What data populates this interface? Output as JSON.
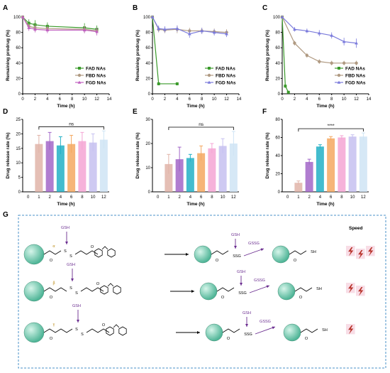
{
  "panels": {
    "A": "A",
    "B": "B",
    "C": "C",
    "D": "D",
    "E": "E",
    "F": "F",
    "G": "G"
  },
  "colors": {
    "FAD": "#3a9a2a",
    "FBD": "#b09a82",
    "FGD": "#7b7bdc",
    "nas_axis_color": "#000000"
  },
  "chart_data": [
    {
      "type": "line",
      "panel": "A",
      "xlabel": "Time (h)",
      "ylabel": "Remaining prodrug (%)",
      "xlim": [
        0,
        14
      ],
      "ylim": [
        0,
        100
      ],
      "xticks": [
        0,
        2,
        4,
        6,
        8,
        10,
        12,
        14
      ],
      "yticks": [
        0,
        20,
        40,
        60,
        80,
        100
      ],
      "legend_position": "bottom-right",
      "series": [
        {
          "name": "FAD NAs",
          "color": "#3a9a2a",
          "x": [
            0,
            1,
            2,
            4,
            10,
            12
          ],
          "y": [
            100,
            92,
            90,
            88,
            86,
            84
          ],
          "err": [
            2,
            5,
            6,
            5,
            6,
            5
          ]
        },
        {
          "name": "FBD NAs",
          "color": "#b09a82",
          "x": [
            0,
            1,
            2,
            4,
            10,
            12
          ],
          "y": [
            100,
            88,
            86,
            85,
            84,
            82
          ],
          "err": [
            2,
            4,
            5,
            4,
            5,
            4
          ]
        },
        {
          "name": "FGD NAs",
          "color": "#c060c0",
          "x": [
            0,
            1,
            2,
            4,
            10,
            12
          ],
          "y": [
            100,
            86,
            84,
            83,
            83,
            81
          ],
          "err": [
            2,
            4,
            4,
            4,
            4,
            5
          ]
        }
      ]
    },
    {
      "type": "line",
      "panel": "B",
      "xlabel": "Time (h)",
      "ylabel": "Remaining prodrug (%)",
      "xlim": [
        0,
        14
      ],
      "ylim": [
        0,
        100
      ],
      "xticks": [
        0,
        2,
        4,
        6,
        8,
        10,
        12,
        14
      ],
      "yticks": [
        0,
        20,
        40,
        60,
        80,
        100
      ],
      "legend_position": "bottom-right",
      "series": [
        {
          "name": "FAD NAs",
          "color": "#3a9a2a",
          "x": [
            0,
            1,
            4
          ],
          "y": [
            100,
            13,
            13
          ],
          "err": [
            2,
            2,
            2
          ]
        },
        {
          "name": "FBD NAs",
          "color": "#b09a82",
          "x": [
            0,
            1,
            2,
            4,
            6,
            8,
            10,
            12
          ],
          "y": [
            100,
            84,
            83,
            84,
            82,
            82,
            81,
            80
          ],
          "err": [
            2,
            4,
            4,
            5,
            4,
            4,
            4,
            4
          ]
        },
        {
          "name": "FGD NAs",
          "color": "#7b7bdc",
          "x": [
            0,
            1,
            2,
            4,
            6,
            8,
            10,
            12
          ],
          "y": [
            100,
            85,
            84,
            85,
            78,
            82,
            80,
            78
          ],
          "err": [
            2,
            4,
            4,
            4,
            5,
            4,
            4,
            4
          ]
        }
      ]
    },
    {
      "type": "line",
      "panel": "C",
      "xlabel": "Time (h)",
      "ylabel": "Remaining prodrug (%)",
      "xlim": [
        0,
        14
      ],
      "ylim": [
        0,
        100
      ],
      "xticks": [
        0,
        2,
        4,
        6,
        8,
        10,
        12,
        14
      ],
      "yticks": [
        0,
        20,
        40,
        60,
        80,
        100
      ],
      "legend_position": "bottom-right",
      "series": [
        {
          "name": "FAD NAs",
          "color": "#3a9a2a",
          "x": [
            0,
            0.5,
            1
          ],
          "y": [
            100,
            10,
            2
          ],
          "err": [
            2,
            2,
            2
          ]
        },
        {
          "name": "FBD NAs",
          "color": "#b09a82",
          "x": [
            0,
            2,
            4,
            6,
            8,
            10,
            12
          ],
          "y": [
            100,
            66,
            50,
            42,
            40,
            40,
            40
          ],
          "err": [
            2,
            3,
            3,
            3,
            3,
            3,
            3
          ]
        },
        {
          "name": "FGD NAs",
          "color": "#7b7bdc",
          "x": [
            0,
            2,
            4,
            6,
            8,
            10,
            12
          ],
          "y": [
            100,
            84,
            82,
            79,
            76,
            68,
            66
          ],
          "err": [
            2,
            3,
            3,
            4,
            4,
            5,
            6
          ]
        }
      ]
    },
    {
      "type": "bar",
      "panel": "D",
      "xlabel": "Time (h)",
      "ylabel": "Drug release rate (%)",
      "categories": [
        "0",
        "1",
        "2",
        "4",
        "6",
        "8",
        "10",
        "12"
      ],
      "ylim": [
        0,
        25
      ],
      "yticks": [
        0,
        5,
        10,
        15,
        20,
        25
      ],
      "values": [
        0,
        16.5,
        17.5,
        16,
        16.5,
        17.5,
        17,
        18
      ],
      "err": [
        0,
        3,
        3,
        3,
        3,
        3,
        3,
        3
      ],
      "significance": "ns"
    },
    {
      "type": "bar",
      "panel": "E",
      "xlabel": "Time (h)",
      "ylabel": "Drug release rate (%)",
      "categories": [
        "0",
        "1",
        "2",
        "4",
        "6",
        "8",
        "10",
        "12"
      ],
      "ylim": [
        0,
        30
      ],
      "yticks": [
        0,
        10,
        20,
        30
      ],
      "values": [
        0,
        11.5,
        13.5,
        14,
        16,
        18,
        19,
        20
      ],
      "err": [
        0,
        4,
        5,
        1.5,
        3,
        2,
        3,
        5
      ],
      "significance": "ns"
    },
    {
      "type": "bar",
      "panel": "F",
      "xlabel": "Time (h)",
      "ylabel": "Drug release rate (%)",
      "categories": [
        "0",
        "1",
        "2",
        "4",
        "6",
        "8",
        "10",
        "12"
      ],
      "ylim": [
        0,
        80
      ],
      "yticks": [
        0,
        20,
        40,
        60,
        80
      ],
      "values": [
        0,
        10,
        33,
        50,
        59,
        60,
        61,
        61
      ],
      "err": [
        0,
        2,
        3,
        2,
        2,
        2,
        2,
        4
      ],
      "significance": "****"
    }
  ],
  "bar_colors": [
    "#e8b7a8",
    "#e0b4a8",
    "#a266c8",
    "#22b0c6",
    "#f4a860",
    "#f4a4d4",
    "#c6c0f0",
    "#cfe4f4"
  ],
  "scheme": {
    "gsh": "GSH",
    "gssg": "GSSG",
    "ssg": "SSG",
    "sh": "SH",
    "speed": "Speed",
    "o": "O",
    "s": "S",
    "alpha": "α",
    "beta": "β",
    "gamma": "γ"
  }
}
